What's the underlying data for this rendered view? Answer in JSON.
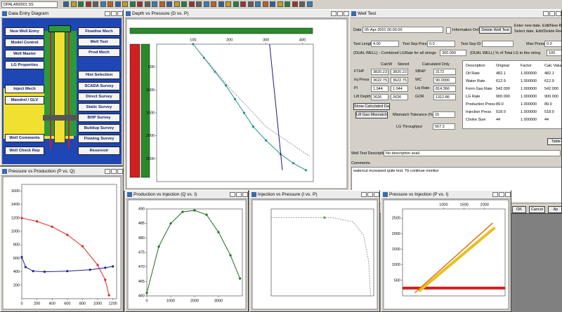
{
  "toolbar": {
    "file": "DPALAN0001.SS"
  },
  "data_entry": {
    "title": "Data Entry Diagram",
    "buttons_left": [
      "New Well Entry",
      "Model Control",
      "Well Master",
      "LG Properties",
      "Inject Mech",
      "Mandrel / GLV",
      "Well Comments",
      "Well Check Rep"
    ],
    "buttons_right": [
      "Flowline Mech",
      "Well Test",
      "Prod Mech",
      "Hist Selection",
      "SCADA Survey",
      "Direct Survey",
      "Static Survey",
      "BHP Survey",
      "Buildup Survey",
      "Flowing Survey",
      "Reservoir"
    ]
  },
  "well_test": {
    "title": "Well Test",
    "date_label": "Date",
    "date": "05-Apr-2001 00:00:00",
    "info_only": "Information Only",
    "delete": "Delete Well Test",
    "note1": "Enter new date, Edit/New Record to",
    "note2": "Select date, Edit/Delete Record to de",
    "test_length_label": "Test Length",
    "test_length": "4.00",
    "sep_press_label": "Test Sep Press",
    "sep_press": "0.0",
    "sep_id_label": "Test Sep ID",
    "man_press_label": "Man Press",
    "man_press": "0.0",
    "dual_combined_label": "(DUAL WELL) - Combined LGRate for all strings",
    "dual_combined": "300.000",
    "dual_pct_label": "(DUAL WELL) % of Total LG to this string",
    "dual_pct": "100",
    "left_headers": [
      "CalcW",
      "Stored",
      "Calculated Only"
    ],
    "left_rows": [
      [
        "FTHP",
        "3820.23",
        "3820.23",
        "SBHP",
        "3172"
      ],
      [
        "Inj Press",
        "3622.75",
        "3622.75",
        "WC",
        "90.0000"
      ],
      [
        "PI",
        "1.044",
        "1.044",
        "Liq Rate",
        "814.366"
      ],
      [
        "Lift Depth",
        "2626",
        "2626",
        "GOR",
        "1312.86"
      ]
    ],
    "show_calc": "Show Calculated Data",
    "mismatch": "Lift Gas Mismatch",
    "tolerance_label": "Mismatch Tolerance (%)",
    "tolerance": "15",
    "throughput_label": "LG Throughput",
    "throughput": "567.2",
    "right_headers": [
      "Description",
      "Original",
      "Factor",
      "Calc Value"
    ],
    "right_rows": [
      [
        "Oil Rate",
        "482.1",
        "1.000000",
        "482.1"
      ],
      [
        "Water Rate",
        "612.9",
        "1.000000",
        "612.9"
      ],
      [
        "Form Gas Rate",
        "542.000",
        "1.000000",
        "542.000"
      ],
      [
        "LG Rate",
        "900.000",
        "1.000000",
        "900.000"
      ],
      [
        "Production Press",
        "89.0",
        "1.000000",
        "89.0"
      ],
      [
        "Injection Press",
        "518.0",
        "1.000000",
        "518.0"
      ],
      [
        "Choke Size",
        "44",
        "1.000000",
        "44"
      ]
    ],
    "table_btn": "Table V",
    "desc_label": "Well Test Description",
    "desc": "No description avail",
    "comments_label": "Comments",
    "comments": "watercut increased quite test. Tb continue monitor",
    "ok": "OK",
    "cancel": "Cancel",
    "apply": "Ap"
  },
  "chart_data": [
    {
      "type": "line",
      "title": "Depth vs Pressure (D vs. P)",
      "xlim": [
        0,
        430
      ],
      "ylim": [
        0,
        3000
      ],
      "y_reversed": true,
      "x_axis": "top",
      "xticks": [
        100,
        200,
        300,
        400
      ],
      "yticks": [
        500,
        1000,
        1500,
        2000,
        2500
      ],
      "series": [
        {
          "color": "#1f8f8f",
          "markers": true,
          "x": [
            100,
            130,
            160,
            190,
            215,
            240,
            265,
            300,
            340,
            375,
            410
          ],
          "values": [
            0,
            300,
            600,
            900,
            1200,
            1500,
            1800,
            2100,
            2400,
            2600,
            2750
          ]
        },
        {
          "color": "#999999",
          "dashed": true,
          "x": [
            100,
            200,
            300,
            420
          ],
          "values": [
            0,
            950,
            1800,
            2450
          ]
        },
        {
          "color": "#1a1a7a",
          "x": [
            310,
            345
          ],
          "values": [
            0,
            2750
          ]
        }
      ]
    },
    {
      "type": "line",
      "title": "Pressure vs Production (P vs. Q)",
      "xlim": [
        0,
        1250
      ],
      "ylim": [
        0,
        1700
      ],
      "xticks": [
        0,
        200,
        400,
        600,
        800,
        1000,
        1200
      ],
      "yticks": [
        200,
        400,
        600,
        800,
        1000,
        1200,
        1400,
        1600
      ],
      "series": [
        {
          "color": "#e02020",
          "markers": true,
          "x": [
            0,
            200,
            400,
            600,
            800,
            1000,
            1100,
            1150
          ],
          "values": [
            1200,
            1150,
            1070,
            950,
            780,
            500,
            280,
            50
          ]
        },
        {
          "color": "#20208a",
          "markers": true,
          "x": [
            0,
            50,
            150,
            300,
            600,
            900,
            1100,
            1200
          ],
          "values": [
            620,
            470,
            410,
            400,
            410,
            430,
            460,
            480
          ]
        }
      ]
    },
    {
      "type": "line",
      "title": "Production vs Injection (Q vs. I)",
      "xlim": [
        0,
        4000
      ],
      "ylim": [
        460,
        490
      ],
      "xticks": [
        0,
        1000,
        2000,
        3000
      ],
      "yticks": [
        460,
        465,
        470,
        475,
        480,
        485,
        490
      ],
      "series": [
        {
          "color": "#1e6e1e",
          "markers": true,
          "x": [
            0,
            500,
            1000,
            1500,
            2000,
            2500,
            3000,
            3500,
            3900
          ],
          "values": [
            461,
            477,
            485,
            489,
            489.5,
            488,
            482,
            474,
            466
          ]
        }
      ]
    },
    {
      "type": "line",
      "title": "Injection vs Pressure (I vs. P)",
      "xlim": [
        0,
        100
      ],
      "ylim": [
        0,
        100
      ],
      "series": [
        {
          "color": "#999999",
          "dashed": true,
          "x": [
            0,
            30,
            60,
            80,
            90,
            95,
            97
          ],
          "values": [
            90,
            90,
            90,
            85,
            70,
            40,
            0
          ]
        },
        {
          "color": "#5aa02a",
          "markers": true,
          "x": [
            52
          ],
          "values": [
            90
          ]
        }
      ]
    },
    {
      "type": "line",
      "title": "Pressure vs Injection (P vs. I)",
      "xlim": [
        0,
        2500
      ],
      "ylim": [
        0,
        2800
      ],
      "x_axis": "top",
      "xticks": [
        1000,
        1500,
        2000
      ],
      "yticks": [
        500,
        1000,
        1500,
        2000,
        2500
      ],
      "series": [
        {
          "color": "#d02020",
          "width": 4,
          "x": [
            0,
            2500
          ],
          "values": [
            250,
            250
          ]
        },
        {
          "color": "#e8c020",
          "width": 4,
          "x": [
            400,
            2250
          ],
          "values": [
            150,
            2200
          ]
        },
        {
          "color": "#e07010",
          "width": 1.5,
          "x": [
            300,
            2200
          ],
          "values": [
            100,
            2350
          ]
        }
      ]
    }
  ]
}
